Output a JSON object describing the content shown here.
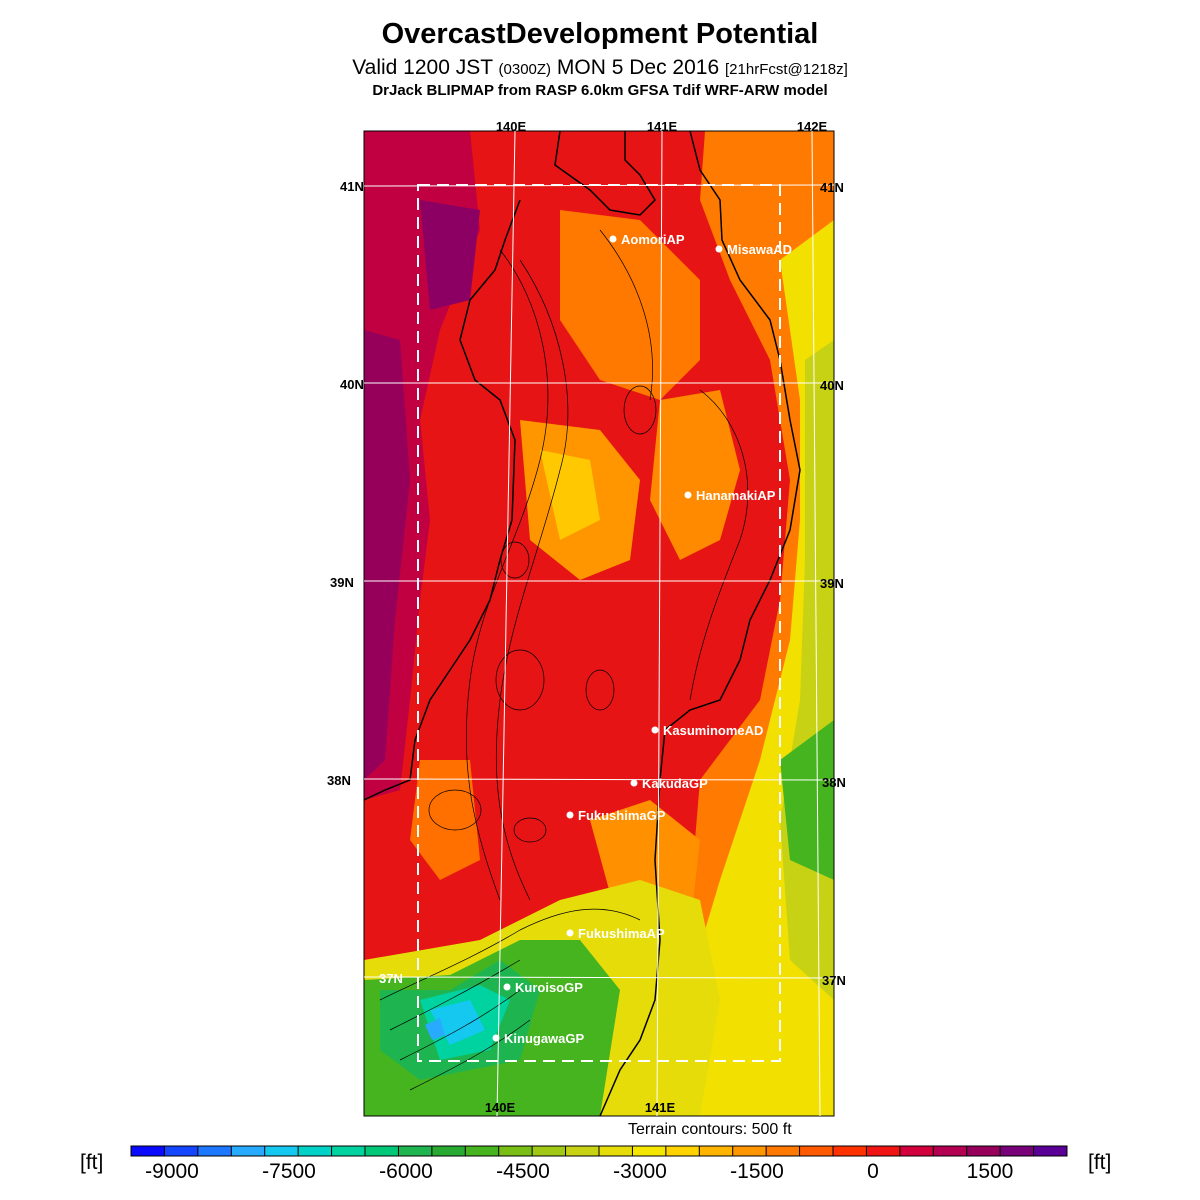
{
  "header": {
    "title": "OvercastDevelopment Potential",
    "valid_prefix": "Valid 1200 JST",
    "utc": "(0300Z)",
    "date": "MON 5 Dec 2016",
    "forecast": "[21hrFcst@1218z]",
    "model_line": "DrJack BLIPMAP from RASP 6.0km GFSA Tdif WRF-ARW model"
  },
  "map": {
    "lon_labels_top": [
      "140E",
      "141E",
      "142E"
    ],
    "lon_labels_bottom": [
      "140E",
      "141E"
    ],
    "lat_labels": [
      "41N",
      "40N",
      "39N",
      "38N",
      "37N"
    ],
    "stations": [
      {
        "name": "AomoriAP"
      },
      {
        "name": "MisawaAD"
      },
      {
        "name": "HanamakiAP"
      },
      {
        "name": "KasuminomeAD"
      },
      {
        "name": "KakudaGP"
      },
      {
        "name": "FukushimaGP"
      },
      {
        "name": "FukushimaAP"
      },
      {
        "name": "KuroisoGP"
      },
      {
        "name": "KinugawaGP"
      }
    ],
    "terrain_note": "Terrain contours: 500 ft"
  },
  "colorbar": {
    "unit": "[ft]",
    "tick_labels": [
      "-9000",
      "-7500",
      "-6000",
      "-4500",
      "-3000",
      "-1500",
      "0",
      "1500"
    ],
    "colors": [
      "#0a0aff",
      "#1446ff",
      "#1e78ff",
      "#28aaff",
      "#14c8f0",
      "#00d2c8",
      "#00d2a0",
      "#00c878",
      "#1eb450",
      "#28aa32",
      "#46b41e",
      "#78be14",
      "#a0c814",
      "#c8d214",
      "#e6dc0a",
      "#f5e600",
      "#ffd200",
      "#ffb400",
      "#ff9600",
      "#ff7800",
      "#ff5a00",
      "#ff3200",
      "#f01414",
      "#d2003c",
      "#b40050",
      "#96005a",
      "#780078",
      "#5a0096"
    ]
  }
}
